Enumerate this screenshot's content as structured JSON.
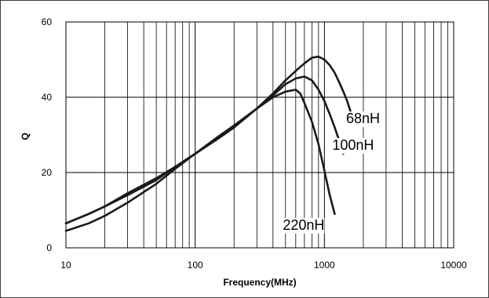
{
  "chart_data": {
    "type": "line",
    "title": "",
    "xlabel": "Frequency(MHz)",
    "ylabel": "Q",
    "xscale": "log",
    "xlim": [
      10,
      10000
    ],
    "ylim": [
      0,
      60
    ],
    "x_ticks": [
      "10",
      "100",
      "1000",
      "10000"
    ],
    "y_ticks": [
      "0",
      "20",
      "40",
      "60"
    ],
    "grid": "on",
    "legend": "none",
    "colors": {
      "lines": "#1a1a1a",
      "grid": "#000000",
      "background": "#ffffff"
    },
    "series": [
      {
        "name": "68nH",
        "x": [
          10,
          15,
          20,
          30,
          50,
          70,
          100,
          150,
          200,
          300,
          400,
          500,
          600,
          700,
          800,
          900,
          1000,
          1100,
          1200,
          1300,
          1400,
          1500,
          1600
        ],
        "y": [
          6.5,
          9,
          11,
          14,
          18,
          21.5,
          25,
          29,
          32,
          37,
          41,
          44.5,
          47,
          49,
          50.5,
          50.8,
          50,
          48.5,
          46.5,
          44,
          41.5,
          39,
          36
        ]
      },
      {
        "name": "100nH",
        "x": [
          10,
          15,
          20,
          30,
          50,
          70,
          100,
          150,
          200,
          300,
          400,
          500,
          600,
          700,
          800,
          900,
          1000,
          1100,
          1200,
          1300,
          1400
        ],
        "y": [
          6.5,
          9,
          11,
          14.5,
          18.5,
          21.5,
          25,
          29,
          32,
          37,
          40.5,
          43.5,
          45,
          45.5,
          44.5,
          42,
          39,
          35.5,
          32,
          28.5,
          25
        ]
      },
      {
        "name": "220nH",
        "x": [
          10,
          15,
          20,
          30,
          50,
          70,
          100,
          150,
          200,
          300,
          400,
          500,
          600,
          650,
          700,
          800,
          900,
          1000,
          1100,
          1200
        ],
        "y": [
          4.5,
          6.5,
          8.5,
          12,
          17,
          21,
          25,
          29.5,
          32.5,
          37,
          40,
          41.5,
          42,
          41,
          38.5,
          33.5,
          27.5,
          20.5,
          14,
          9
        ]
      }
    ]
  }
}
